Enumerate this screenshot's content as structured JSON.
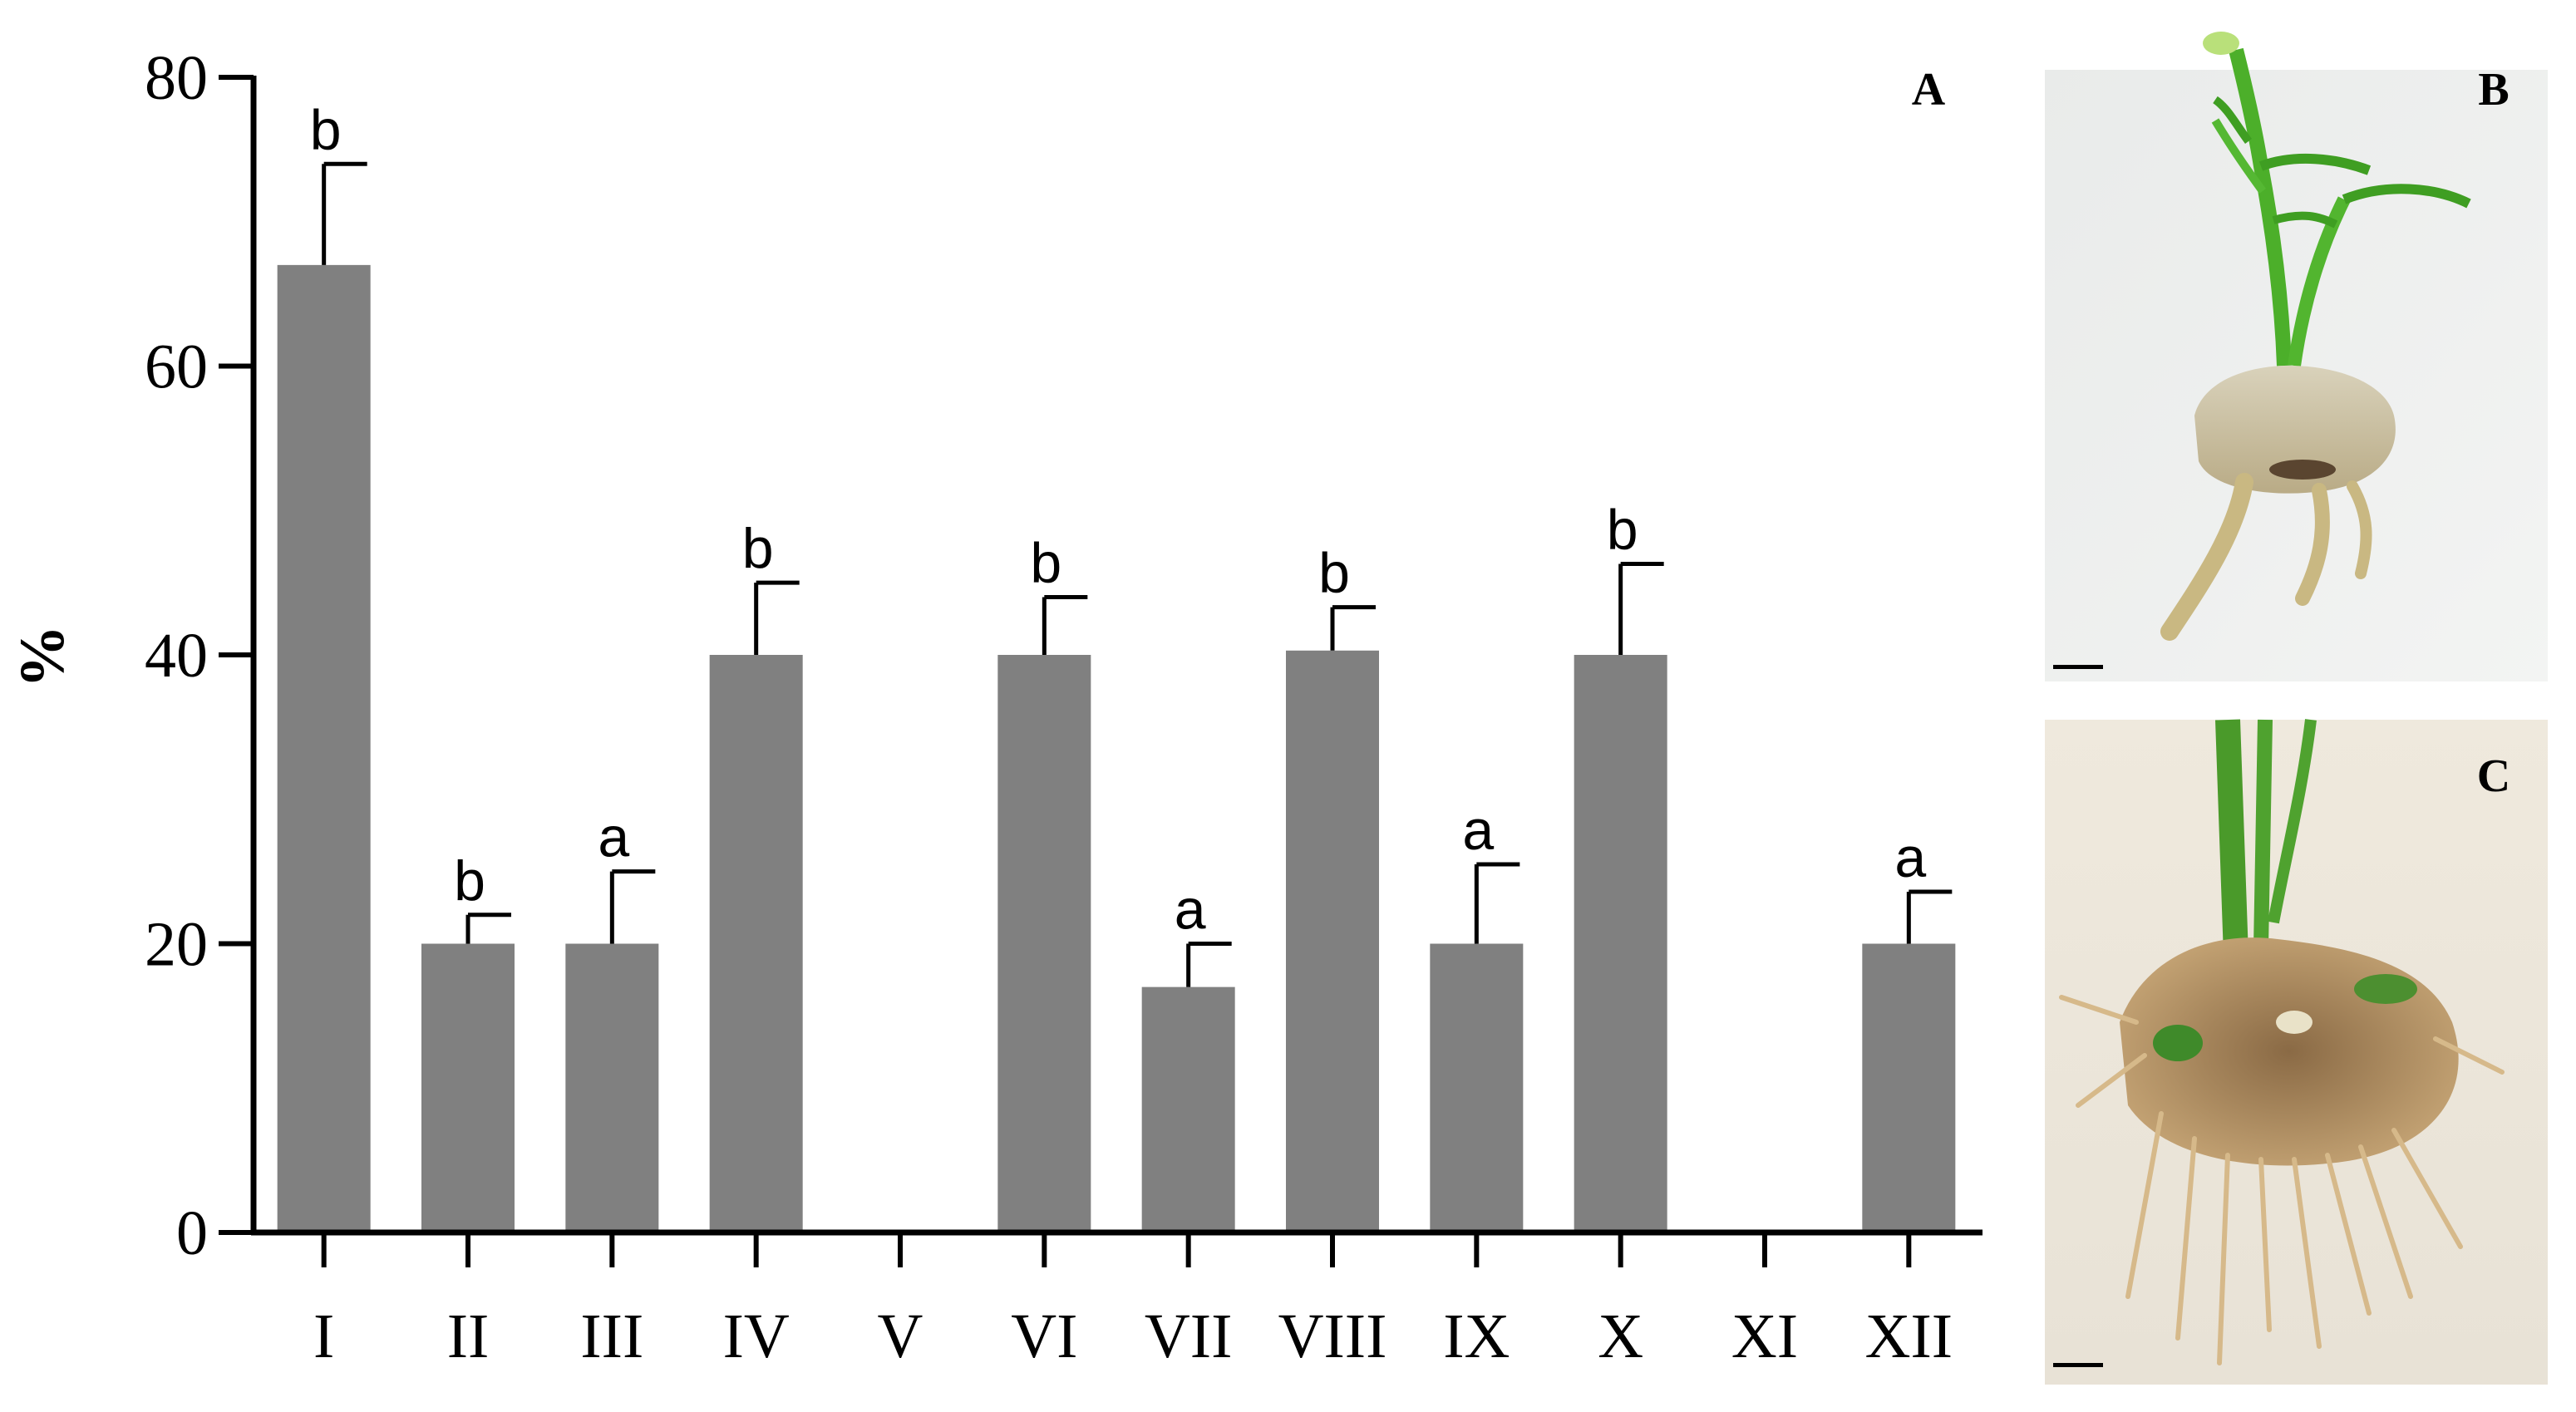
{
  "panels": {
    "a_label": "A",
    "b_label": "B",
    "c_label": "C"
  },
  "colors": {
    "bar": "#808080",
    "axis": "#000000"
  },
  "chart_data": {
    "type": "bar",
    "title": "",
    "xlabel": "",
    "ylabel": "%",
    "ylim": [
      0,
      80
    ],
    "yticks": [
      0,
      20,
      40,
      60,
      80
    ],
    "categories": [
      "I",
      "II",
      "III",
      "IV",
      "V",
      "VI",
      "VII",
      "VIII",
      "IX",
      "X",
      "XI",
      "XII"
    ],
    "values": [
      67,
      20,
      20,
      40,
      0,
      40,
      17,
      40.3,
      20,
      40,
      0,
      20
    ],
    "errors": [
      7,
      2,
      5,
      5,
      0,
      4,
      3,
      3,
      5.5,
      6.3,
      0,
      3.6
    ],
    "significance": [
      "b",
      "b",
      "a",
      "b",
      "",
      "b",
      "a",
      "b",
      "a",
      "b",
      "",
      "a"
    ],
    "grid": false,
    "legend": "none"
  },
  "photos": [
    {
      "panel": "B",
      "description_icon": "plantlet-shoot-photo"
    },
    {
      "panel": "C",
      "description_icon": "plantlet-roots-photo"
    }
  ]
}
